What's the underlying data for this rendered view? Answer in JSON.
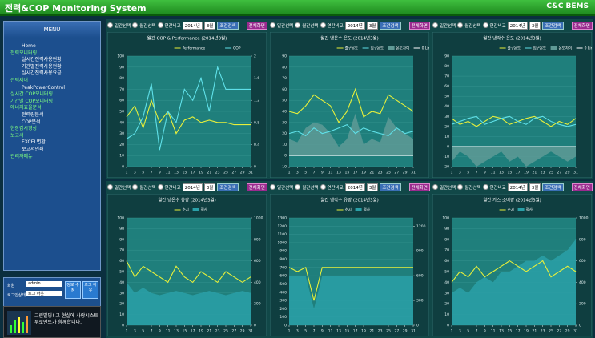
{
  "header": {
    "title": "전력&COP Monitoring System",
    "brand": "C&C BEMS"
  },
  "sidebar": {
    "menu": "MENU",
    "home": "Home",
    "groups": [
      {
        "label": "전력모니터링",
        "children": [
          "실시간전력사용현황",
          "기간별전력사용현황",
          "실시간전력사용요금"
        ]
      },
      {
        "label": "전력제어",
        "children": [
          "PeakPowerControl"
        ]
      },
      {
        "label": "실시간 COP모니터링",
        "children": []
      },
      {
        "label": "기간별 COP모니터링",
        "children": []
      },
      {
        "label": "에너지효율분석",
        "children": [
          "전력량분석",
          "COP분석"
        ]
      },
      {
        "label": "현장감시영상",
        "children": []
      },
      {
        "label": "보고서",
        "children": [
          "EXCEL변환",
          "보고서인쇄"
        ]
      },
      {
        "label": "관리자메뉴",
        "children": []
      }
    ]
  },
  "login": {
    "id_label": "회원",
    "id": "admin",
    "status_label": "로그인상태",
    "status": "로그 아웃",
    "edit": "정보 수정",
    "logout": "로그 아웃"
  },
  "banner": {
    "text": "그린빌딩! 그 현실에 사랑시스트투로먼트가 함께합니다."
  },
  "controls": {
    "daily": "일간선택",
    "monthly": "월간선택",
    "yearly": "연간비교",
    "year": "2014년",
    "month": "3월",
    "search": "조건검색",
    "fullscreen": "전체화면"
  },
  "chart_data": [
    {
      "type": "line",
      "title": "월간 COP & Performance (2014년3월)",
      "x": [
        1,
        3,
        5,
        7,
        9,
        11,
        13,
        15,
        17,
        19,
        21,
        23,
        25,
        27,
        29,
        31
      ],
      "xlim": [
        1,
        31
      ],
      "xticks": [
        1,
        3,
        5,
        7,
        9,
        11,
        13,
        15,
        17,
        19,
        21,
        23,
        25,
        27,
        29,
        31
      ],
      "ylim": [
        0,
        100
      ],
      "yticks": [
        0,
        10,
        20,
        30,
        40,
        50,
        60,
        70,
        80,
        90,
        100
      ],
      "y2lim": [
        0,
        2
      ],
      "y2ticks": [
        0,
        0.4,
        0.8,
        1.2,
        1.6,
        2
      ],
      "series": [
        {
          "name": "Performance",
          "color": "#e8f03a",
          "kind": "line",
          "values": [
            45,
            55,
            35,
            60,
            40,
            50,
            30,
            42,
            45,
            40,
            42,
            40,
            40,
            38,
            38,
            38
          ]
        },
        {
          "name": "COP",
          "color": "#5fe0e8",
          "kind": "line",
          "axis": "y2",
          "values": [
            0.5,
            0.6,
            0.9,
            1.5,
            0.3,
            1.0,
            0.8,
            1.4,
            1.2,
            1.6,
            1.0,
            1.8,
            1.4,
            1.4,
            1.4,
            1.4
          ]
        }
      ]
    },
    {
      "type": "line",
      "title": "월간 냉온수 온도 (2014년3월)",
      "x": [
        1,
        3,
        5,
        7,
        9,
        11,
        13,
        15,
        17,
        19,
        21,
        23,
        25,
        27,
        29,
        31
      ],
      "xlim": [
        1,
        31
      ],
      "xticks": [
        1,
        3,
        5,
        7,
        9,
        11,
        13,
        15,
        17,
        19,
        21,
        23,
        25,
        27,
        29,
        31
      ],
      "ylim": [
        -10,
        90
      ],
      "yticks": [
        -10,
        0,
        10,
        20,
        30,
        40,
        50,
        60,
        70,
        80,
        90
      ],
      "zero_line": {
        "name": "0 Line",
        "value": 0
      },
      "series": [
        {
          "name": "출구온도",
          "color": "#e8f03a",
          "kind": "line",
          "values": [
            40,
            38,
            45,
            55,
            50,
            45,
            30,
            40,
            60,
            35,
            40,
            38,
            55,
            50,
            45,
            40
          ]
        },
        {
          "name": "입구온도",
          "color": "#5fe0e8",
          "kind": "line",
          "values": [
            20,
            22,
            18,
            25,
            20,
            22,
            25,
            28,
            20,
            25,
            22,
            20,
            18,
            25,
            20,
            22
          ]
        },
        {
          "name": "온도차이",
          "color": "#5f9a96",
          "kind": "area",
          "values": [
            15,
            12,
            25,
            30,
            28,
            20,
            8,
            15,
            38,
            10,
            15,
            12,
            35,
            25,
            20,
            15
          ]
        }
      ]
    },
    {
      "type": "line",
      "title": "월간 냉각수 온도 (2014년3월)",
      "x": [
        1,
        3,
        5,
        7,
        9,
        11,
        13,
        15,
        17,
        19,
        21,
        23,
        25,
        27,
        29,
        31
      ],
      "xlim": [
        1,
        31
      ],
      "xticks": [
        1,
        3,
        5,
        7,
        9,
        11,
        13,
        15,
        17,
        19,
        21,
        23,
        25,
        27,
        29,
        31
      ],
      "ylim": [
        -20,
        90
      ],
      "yticks": [
        -20,
        -10,
        0,
        10,
        20,
        30,
        40,
        50,
        60,
        70,
        80,
        90
      ],
      "zero_line": {
        "name": "0 Line",
        "value": 0
      },
      "series": [
        {
          "name": "출구온도",
          "color": "#e8f03a",
          "kind": "line",
          "values": [
            28,
            22,
            25,
            20,
            25,
            30,
            28,
            22,
            25,
            28,
            30,
            25,
            20,
            25,
            22,
            28
          ]
        },
        {
          "name": "입구온도",
          "color": "#5fe0e8",
          "kind": "line",
          "values": [
            22,
            25,
            28,
            30,
            22,
            25,
            28,
            30,
            25,
            22,
            28,
            30,
            25,
            22,
            20,
            22
          ]
        },
        {
          "name": "온도차이",
          "color": "#5f9a96",
          "kind": "area",
          "values": [
            -15,
            -5,
            -10,
            -20,
            -15,
            -10,
            -5,
            -15,
            -10,
            -20,
            -15,
            -10,
            -5,
            -10,
            -15,
            -10
          ]
        }
      ]
    },
    {
      "type": "line",
      "title": "월간 냉온수 유량 (2014년3월)",
      "x": [
        1,
        3,
        5,
        7,
        9,
        11,
        13,
        15,
        17,
        19,
        21,
        23,
        25,
        27,
        29,
        31
      ],
      "xlim": [
        1,
        31
      ],
      "xticks": [
        1,
        3,
        5,
        7,
        9,
        11,
        13,
        15,
        17,
        19,
        21,
        23,
        25,
        27,
        29,
        31
      ],
      "ylim": [
        0,
        100
      ],
      "yticks": [
        0,
        10,
        20,
        30,
        40,
        50,
        60,
        70,
        80,
        90,
        100
      ],
      "y2lim": [
        0,
        1000
      ],
      "y2ticks": [
        0,
        200,
        400,
        600,
        800,
        1000
      ],
      "series": [
        {
          "name": "순시",
          "color": "#e8f03a",
          "kind": "line",
          "values": [
            60,
            45,
            55,
            50,
            45,
            40,
            55,
            45,
            40,
            50,
            45,
            40,
            50,
            45,
            40,
            45
          ]
        },
        {
          "name": "적산",
          "color": "#2aa0a8",
          "kind": "area",
          "axis": "y2",
          "values": [
            400,
            300,
            350,
            300,
            280,
            300,
            320,
            300,
            280,
            300,
            320,
            300,
            280,
            300,
            320,
            300
          ]
        }
      ]
    },
    {
      "type": "line",
      "title": "월간 냉각수 유량 (2014년3월)",
      "x": [
        1,
        3,
        5,
        7,
        9,
        11,
        13,
        15,
        17,
        19,
        21,
        23,
        25,
        27,
        29,
        31
      ],
      "xlim": [
        1,
        31
      ],
      "xticks": [
        1,
        3,
        5,
        7,
        9,
        11,
        13,
        15,
        17,
        19,
        21,
        23,
        25,
        27,
        29,
        31
      ],
      "ylim": [
        0,
        1300
      ],
      "yticks": [
        0,
        100,
        200,
        300,
        400,
        500,
        600,
        700,
        800,
        900,
        1000,
        1100,
        1200,
        1300
      ],
      "y2lim": [
        0,
        1300
      ],
      "y2ticks": [
        0,
        300,
        600,
        900,
        1200
      ],
      "series": [
        {
          "name": "순시",
          "color": "#e8f03a",
          "kind": "line",
          "values": [
            700,
            650,
            700,
            300,
            700,
            700,
            700,
            700,
            700,
            700,
            700,
            700,
            700,
            700,
            700,
            700
          ]
        },
        {
          "name": "적산",
          "color": "#2aa0a8",
          "kind": "area",
          "axis": "y2",
          "values": [
            600,
            600,
            600,
            200,
            600,
            600,
            600,
            600,
            600,
            600,
            600,
            600,
            600,
            600,
            600,
            600
          ]
        }
      ]
    },
    {
      "type": "line",
      "title": "월간 가스 소비량 (2014년3월)",
      "x": [
        1,
        3,
        5,
        7,
        9,
        11,
        13,
        15,
        17,
        19,
        21,
        23,
        25,
        27,
        29,
        31
      ],
      "xlim": [
        1,
        31
      ],
      "xticks": [
        1,
        3,
        5,
        7,
        9,
        11,
        13,
        15,
        17,
        19,
        21,
        23,
        25,
        27,
        29,
        31
      ],
      "ylim": [
        0,
        100
      ],
      "yticks": [
        0,
        10,
        20,
        30,
        40,
        50,
        60,
        70,
        80,
        90,
        100
      ],
      "y2lim": [
        0,
        1000
      ],
      "y2ticks": [
        0,
        200,
        400,
        600,
        800,
        1000
      ],
      "series": [
        {
          "name": "순시",
          "color": "#e8f03a",
          "kind": "line",
          "values": [
            40,
            50,
            45,
            55,
            45,
            50,
            55,
            60,
            55,
            50,
            55,
            60,
            45,
            50,
            55,
            50
          ]
        },
        {
          "name": "적산",
          "color": "#2aa0a8",
          "kind": "area",
          "axis": "y2",
          "values": [
            300,
            350,
            300,
            400,
            450,
            400,
            500,
            500,
            550,
            600,
            600,
            650,
            600,
            650,
            700,
            800
          ]
        }
      ]
    }
  ]
}
